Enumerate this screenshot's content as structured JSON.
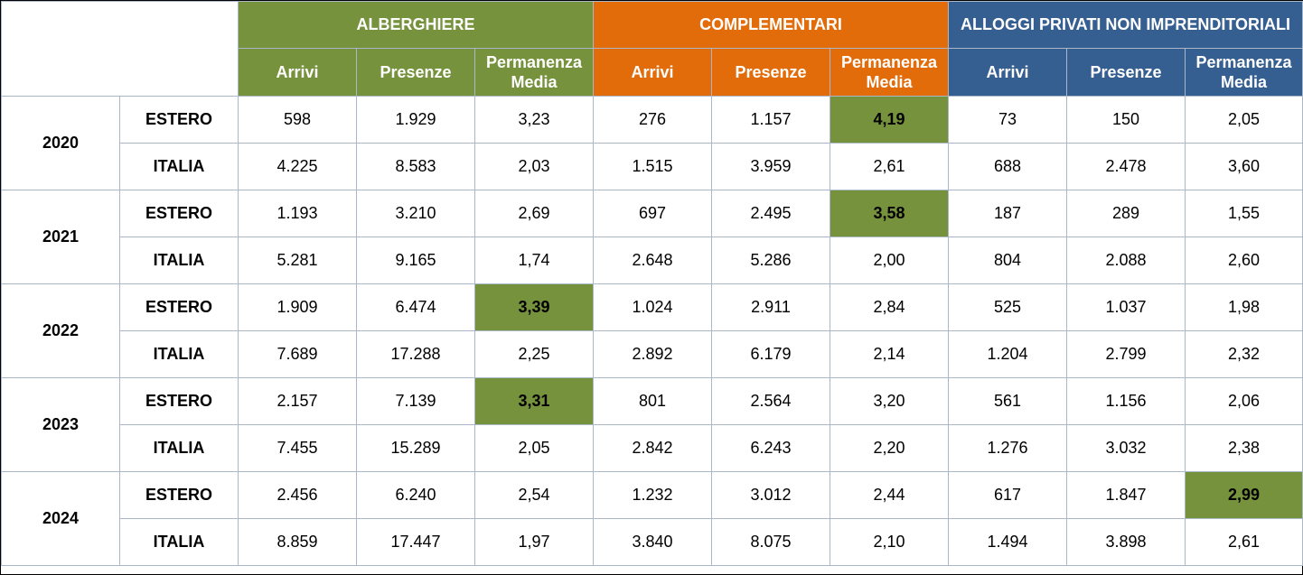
{
  "groups": [
    {
      "label": "ALBERGHIERE",
      "color": "#76923c"
    },
    {
      "label": "COMPLEMENTARI",
      "color": "#e36c0a"
    },
    {
      "label": "ALLOGGI PRIVATI NON IMPRENDITORIALI",
      "color": "#365f91"
    }
  ],
  "subheaders": [
    "Arrivi",
    "Presenze",
    "Permanenza Media"
  ],
  "highlight_color": "#76923c",
  "years": [
    {
      "year": "2020",
      "rows": [
        {
          "origin": "ESTERO",
          "values": [
            "598",
            "1.929",
            "3,23",
            "276",
            "1.157",
            "4,19",
            "73",
            "150",
            "2,05"
          ],
          "highlight": [
            5
          ]
        },
        {
          "origin": "ITALIA",
          "values": [
            "4.225",
            "8.583",
            "2,03",
            "1.515",
            "3.959",
            "2,61",
            "688",
            "2.478",
            "3,60"
          ],
          "highlight": []
        }
      ]
    },
    {
      "year": "2021",
      "rows": [
        {
          "origin": "ESTERO",
          "values": [
            "1.193",
            "3.210",
            "2,69",
            "697",
            "2.495",
            "3,58",
            "187",
            "289",
            "1,55"
          ],
          "highlight": [
            5
          ]
        },
        {
          "origin": "ITALIA",
          "values": [
            "5.281",
            "9.165",
            "1,74",
            "2.648",
            "5.286",
            "2,00",
            "804",
            "2.088",
            "2,60"
          ],
          "highlight": []
        }
      ]
    },
    {
      "year": "2022",
      "rows": [
        {
          "origin": "ESTERO",
          "values": [
            "1.909",
            "6.474",
            "3,39",
            "1.024",
            "2.911",
            "2,84",
            "525",
            "1.037",
            "1,98"
          ],
          "highlight": [
            2
          ]
        },
        {
          "origin": "ITALIA",
          "values": [
            "7.689",
            "17.288",
            "2,25",
            "2.892",
            "6.179",
            "2,14",
            "1.204",
            "2.799",
            "2,32"
          ],
          "highlight": []
        }
      ]
    },
    {
      "year": "2023",
      "rows": [
        {
          "origin": "ESTERO",
          "values": [
            "2.157",
            "7.139",
            "3,31",
            "801",
            "2.564",
            "3,20",
            "561",
            "1.156",
            "2,06"
          ],
          "highlight": [
            2
          ]
        },
        {
          "origin": "ITALIA",
          "values": [
            "7.455",
            "15.289",
            "2,05",
            "2.842",
            "6.243",
            "2,20",
            "1.276",
            "3.032",
            "2,38"
          ],
          "highlight": []
        }
      ]
    },
    {
      "year": "2024",
      "rows": [
        {
          "origin": "ESTERO",
          "values": [
            "2.456",
            "6.240",
            "2,54",
            "1.232",
            "3.012",
            "2,44",
            "617",
            "1.847",
            "2,99"
          ],
          "highlight": [
            8
          ]
        },
        {
          "origin": "ITALIA",
          "values": [
            "8.859",
            "17.447",
            "1,97",
            "3.840",
            "8.075",
            "2,10",
            "1.494",
            "3.898",
            "2,61"
          ],
          "highlight": []
        }
      ]
    }
  ]
}
